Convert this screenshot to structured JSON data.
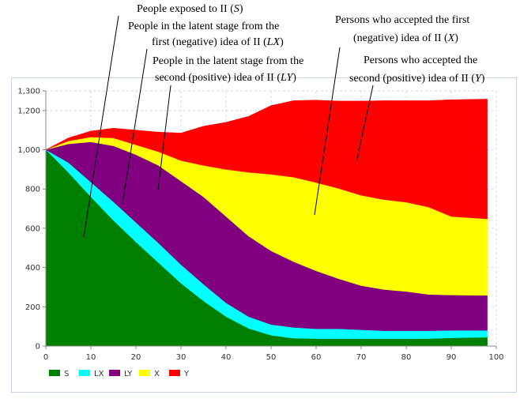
{
  "chart_data": {
    "type": "area",
    "stacked": true,
    "x": [
      0,
      5,
      10,
      15,
      20,
      25,
      30,
      35,
      40,
      45,
      50,
      55,
      60,
      65,
      70,
      75,
      80,
      85,
      90,
      98
    ],
    "xlim": [
      0,
      100
    ],
    "ylim": [
      0,
      1300
    ],
    "x_ticks": [
      "0",
      "10",
      "20",
      "30",
      "40",
      "50",
      "60",
      "70",
      "80",
      "90",
      "100"
    ],
    "y_ticks": [
      "0",
      "200",
      "400",
      "600",
      "800",
      "1,000",
      "1,200",
      "1,300"
    ],
    "grid": true,
    "legend": "bottom-left",
    "series": [
      {
        "name": "S",
        "color": "#008000",
        "values": [
          1000,
          885,
          760,
          640,
          530,
          425,
          320,
          230,
          150,
          90,
          55,
          40,
          38,
          38,
          38,
          38,
          38,
          38,
          42,
          45
        ]
      },
      {
        "name": "LX",
        "color": "#00ffff",
        "values": [
          0,
          50,
          75,
          95,
          100,
          100,
          95,
          85,
          70,
          60,
          55,
          55,
          50,
          50,
          45,
          40,
          40,
          40,
          38,
          35
        ]
      },
      {
        "name": "LY",
        "color": "#800080",
        "values": [
          0,
          95,
          205,
          285,
          345,
          395,
          425,
          445,
          440,
          410,
          375,
          335,
          295,
          255,
          225,
          210,
          200,
          185,
          180,
          178
        ]
      },
      {
        "name": "X",
        "color": "#ffff00",
        "values": [
          0,
          15,
          25,
          40,
          50,
          70,
          105,
          160,
          240,
          325,
          390,
          430,
          450,
          460,
          460,
          458,
          455,
          445,
          400,
          390
        ]
      },
      {
        "name": "Y",
        "color": "#ff0000",
        "values": [
          0,
          15,
          30,
          50,
          75,
          100,
          140,
          200,
          240,
          285,
          350,
          390,
          420,
          445,
          480,
          504,
          517,
          542,
          595,
          610
        ]
      }
    ]
  },
  "annotations": {
    "s": {
      "text": "People exposed to II (",
      "var": "S",
      "close": ")"
    },
    "lx": {
      "line1": "People in the latent stage from the",
      "line2": "first (negative) idea of II (",
      "var": "LX",
      "close": ")"
    },
    "ly": {
      "line1": "People in the latent stage from the",
      "line2": "second (positive) idea of II  (",
      "var": "LY",
      "close": ")"
    },
    "x": {
      "line1": "Persons who accepted the first",
      "line2": "(negative) idea of II (",
      "var": "X",
      "close": ")"
    },
    "y": {
      "line1": "Persons who accepted the",
      "line2": "second (positive) idea of II (",
      "var": "Y",
      "close": ")"
    }
  }
}
